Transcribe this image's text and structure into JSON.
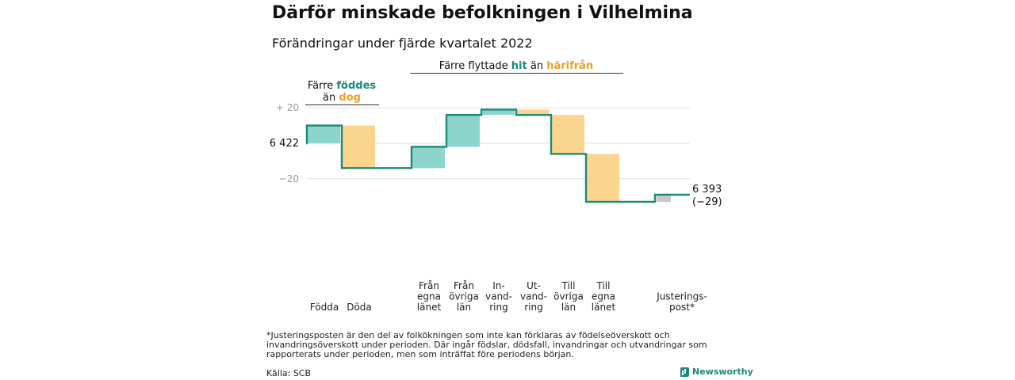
{
  "title": "Därför minskade befolkningen i Vilhelmina",
  "subtitle": "Förändringar under fjärde kvartalet 2022",
  "footnote": "*Justeringsposten är den del av folkökningen som inte kan förklaras av födelseöverskott och invandringsöverskott under perioden. Där ingår födslar, dödsfall, invandringar och utvandringar som rapporterats under perioden, men som inträffat före periodens början.",
  "source": "Källa: SCB",
  "brand": "Newsworthy",
  "colors": {
    "increase": "#8dd5cc",
    "decrease": "#fbd58e",
    "adjustment": "#c8c8c8",
    "line": "#1a8a7a",
    "accent_orange": "#f0a020"
  },
  "group_labels": {
    "births": {
      "l1_a": "Färre ",
      "l1_b": "föddes",
      "l2_a": "än ",
      "l2_b": "dog"
    },
    "migration": {
      "a": "Färre flyttade ",
      "b": "hit",
      "c": " än ",
      "d": "härifrån"
    }
  },
  "chart_data": {
    "type": "waterfall",
    "start_value": 6422,
    "start_label": "6 422",
    "end_value": 6393,
    "end_label": "6 393",
    "end_change_label": "(−29)",
    "ytick_labels": [
      {
        "value": 20,
        "label": "+ 20"
      },
      {
        "value": -20,
        "label": "−20"
      }
    ],
    "ylim": [
      -26,
      20
    ],
    "grid": true,
    "steps": [
      {
        "label": [
          "Födda"
        ],
        "delta": 10,
        "kind": "increase"
      },
      {
        "label": [
          "Döda"
        ],
        "delta": -24,
        "kind": "decrease"
      },
      {
        "label": [
          "Från",
          "egna",
          "länet"
        ],
        "delta": 12,
        "kind": "increase"
      },
      {
        "label": [
          "Från",
          "övriga",
          "län"
        ],
        "delta": 18,
        "kind": "increase"
      },
      {
        "label": [
          "In-",
          "vand-",
          "ring"
        ],
        "delta": 3,
        "kind": "increase"
      },
      {
        "label": [
          "Ut-",
          "vand-",
          "ring"
        ],
        "delta": -3,
        "kind": "decrease"
      },
      {
        "label": [
          "Till",
          "övriga",
          "län"
        ],
        "delta": -22,
        "kind": "decrease"
      },
      {
        "label": [
          "Till",
          "egna",
          "länet"
        ],
        "delta": -27,
        "kind": "decrease"
      },
      {
        "label": [
          "Justerings-",
          "post*"
        ],
        "delta": 4,
        "kind": "adjustment"
      }
    ]
  }
}
